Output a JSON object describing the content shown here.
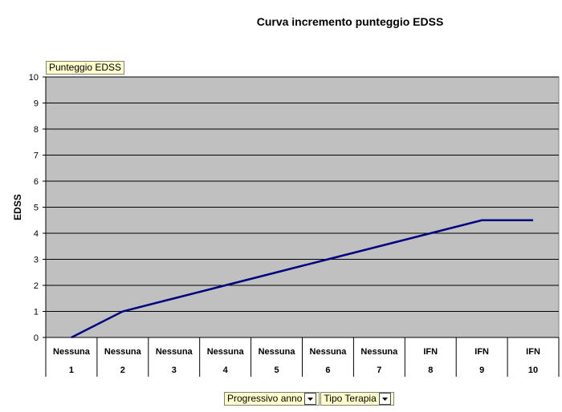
{
  "chart_data": {
    "type": "line",
    "title": "Curva incremento punteggio EDSS",
    "ylabel": "EDSS",
    "xlabel": "",
    "ylim": [
      0,
      10
    ],
    "yticks": [
      0,
      1,
      2,
      3,
      4,
      5,
      6,
      7,
      8,
      9,
      10
    ],
    "grid": true,
    "categories": [
      {
        "therapy": "Nessuna",
        "year": "1"
      },
      {
        "therapy": "Nessuna",
        "year": "2"
      },
      {
        "therapy": "Nessuna",
        "year": "3"
      },
      {
        "therapy": "Nessuna",
        "year": "4"
      },
      {
        "therapy": "Nessuna",
        "year": "5"
      },
      {
        "therapy": "Nessuna",
        "year": "6"
      },
      {
        "therapy": "Nessuna",
        "year": "7"
      },
      {
        "therapy": "IFN",
        "year": "8"
      },
      {
        "therapy": "IFN",
        "year": "9"
      },
      {
        "therapy": "IFN",
        "year": "10"
      }
    ],
    "series": [
      {
        "values": [
          0,
          1,
          1.5,
          2,
          2.5,
          3,
          3.5,
          4,
          4.5,
          4.5
        ]
      }
    ]
  },
  "fields": {
    "data_field": "Punteggio EDSS",
    "row_field_1": "Progressivo anno",
    "row_field_2": "Tipo Terapia"
  },
  "colors": {
    "plot_bg": "#c0c0c0",
    "line": "#000080",
    "field_bg": "#ffffcc"
  },
  "icons": {
    "dropdown": "dropdown-arrow-icon"
  }
}
